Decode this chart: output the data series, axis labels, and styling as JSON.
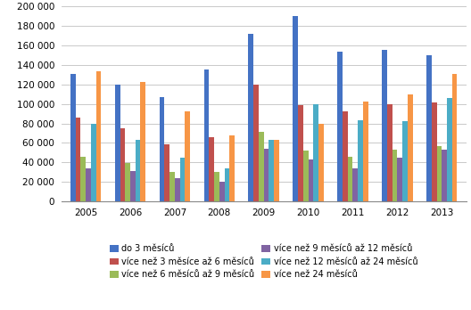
{
  "years": [
    2005,
    2006,
    2007,
    2008,
    2009,
    2010,
    2011,
    2012,
    2013
  ],
  "series": {
    "do 3 měsíců": [
      131000,
      120000,
      107000,
      135000,
      172000,
      190000,
      153000,
      155000,
      150000
    ],
    "více než 3 měsíce až 6 měsíců": [
      86000,
      75000,
      59000,
      66000,
      120000,
      99000,
      92000,
      100000,
      101000
    ],
    "více než 6 měsíců až 9 měsíců": [
      46000,
      39000,
      30000,
      30000,
      71000,
      52000,
      46000,
      53000,
      57000
    ],
    "více než 9 měsíců až 12 měsíců": [
      34000,
      31000,
      24000,
      20000,
      54000,
      43000,
      34000,
      45000,
      53000
    ],
    "více než 12 měsíců až 24 měsíců": [
      80000,
      63000,
      45000,
      34000,
      63000,
      100000,
      83000,
      82000,
      106000
    ],
    "více než 24 měsíců": [
      133000,
      122000,
      92000,
      68000,
      63000,
      80000,
      102000,
      110000,
      131000
    ]
  },
  "colors": {
    "do 3 měsíců": "#4472C4",
    "více než 3 měsíce až 6 měsíců": "#C0504D",
    "více než 6 měsíců až 9 měsíců": "#9BBB59",
    "více než 9 měsíců až 12 měsíců": "#8064A2",
    "více než 12 měsíců až 24 měsíců": "#4BACC6",
    "více než 24 měsíců": "#F79646"
  },
  "ylim": [
    0,
    200000
  ],
  "yticks": [
    0,
    20000,
    40000,
    60000,
    80000,
    100000,
    120000,
    140000,
    160000,
    180000,
    200000
  ],
  "background_color": "#FFFFFF",
  "grid_color": "#C0C0C0",
  "figsize": [
    5.28,
    3.48
  ],
  "dpi": 100
}
